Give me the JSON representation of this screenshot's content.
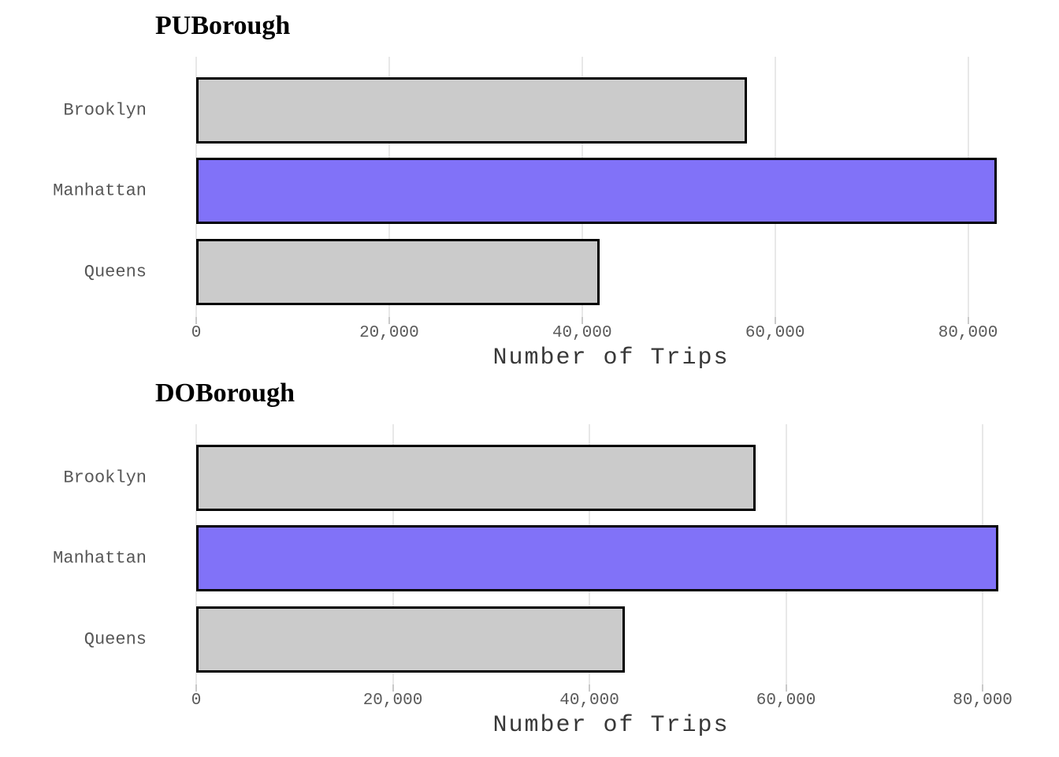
{
  "colors": {
    "background": "#ffffff",
    "bar_default": "#cbcbcb",
    "bar_highlight": "#8172f8",
    "bar_border": "#000000",
    "gridline": "#e8e8e8",
    "tick_mark": "#c9c9c9",
    "axis_text": "#575757",
    "axis_title_text": "#383838",
    "chart_title_text": "#000000"
  },
  "chart_data": [
    {
      "type": "bar",
      "orientation": "horizontal",
      "title": "PUBorough",
      "categories": [
        "Brooklyn",
        "Manhattan",
        "Queens"
      ],
      "values": [
        57100,
        83000,
        41800
      ],
      "highlight_category": "Manhattan",
      "xlabel": "Number of Trips",
      "ylabel": "",
      "x_ticks": [
        0,
        20000,
        40000,
        60000,
        80000
      ],
      "x_tick_labels": [
        "0",
        "20,000",
        "40,000",
        "60,000",
        "80,000"
      ],
      "xlim": [
        0,
        86000
      ],
      "grid": true,
      "legend": false
    },
    {
      "type": "bar",
      "orientation": "horizontal",
      "title": "DOBorough",
      "categories": [
        "Brooklyn",
        "Manhattan",
        "Queens"
      ],
      "values": [
        56900,
        81600,
        43600
      ],
      "highlight_category": "Manhattan",
      "xlabel": "Number of Trips",
      "ylabel": "",
      "x_ticks": [
        0,
        20000,
        40000,
        60000,
        80000
      ],
      "x_tick_labels": [
        "0",
        "20,000",
        "40,000",
        "60,000",
        "80,000"
      ],
      "xlim": [
        0,
        84400
      ],
      "grid": true,
      "legend": false
    }
  ]
}
